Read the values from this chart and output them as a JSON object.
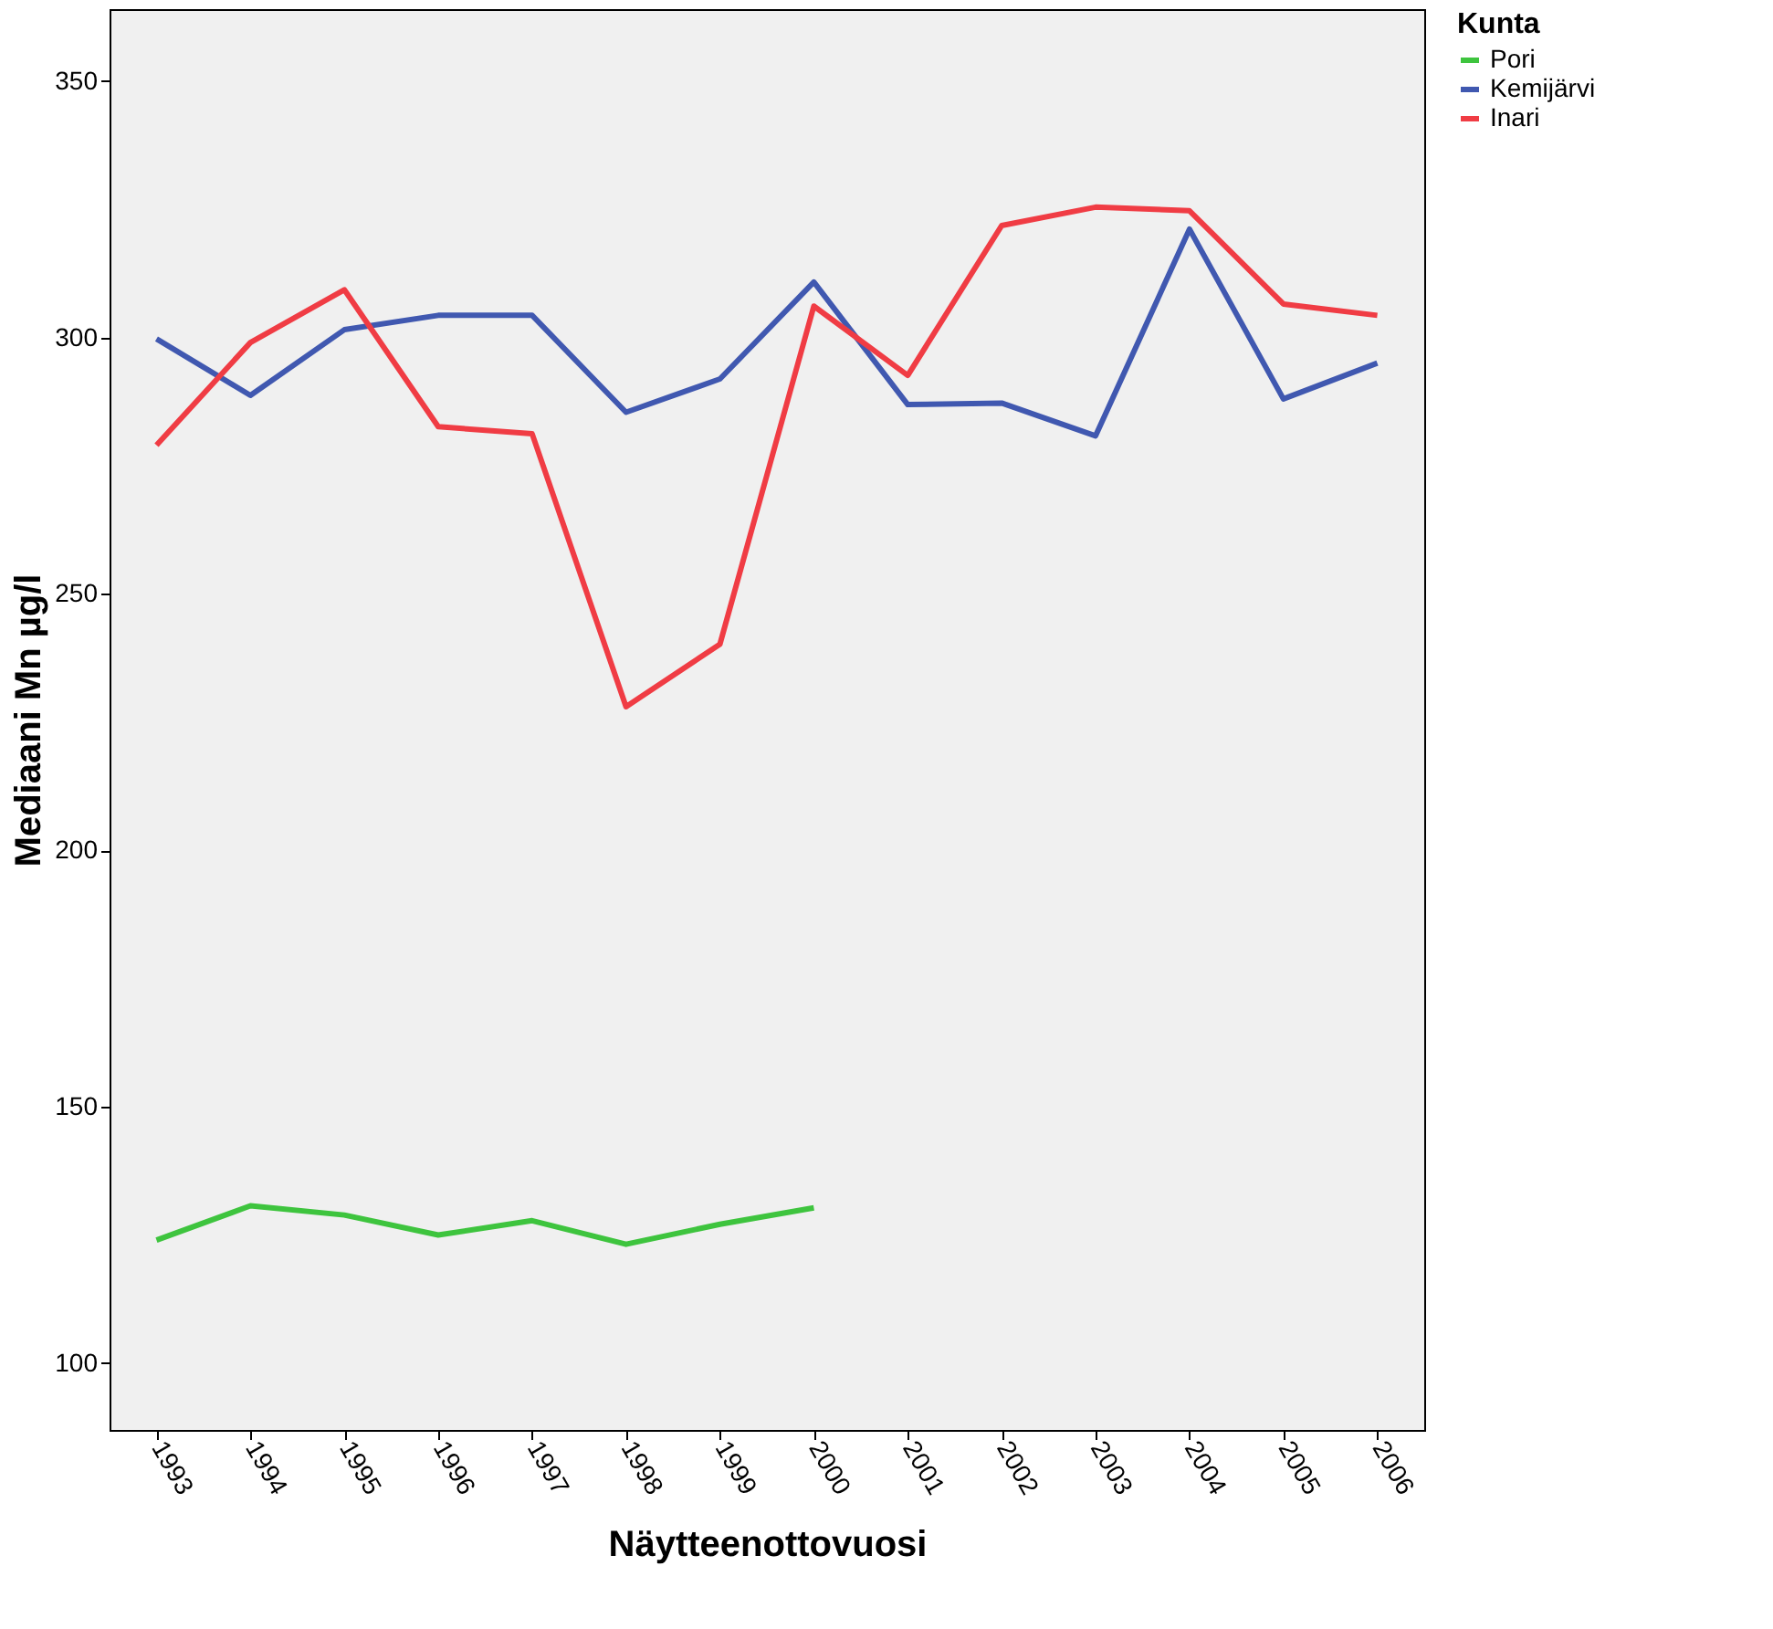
{
  "chart_data": {
    "type": "line",
    "xlabel": "Näytteenottovuosi",
    "ylabel": "Mediaani Mn µg/l",
    "legend_title": "Kunta",
    "legend": "top right",
    "grid": false,
    "line_style": "solid",
    "marker": "none",
    "categories": [
      "1993",
      "1994",
      "1995",
      "1996",
      "1997",
      "1998",
      "1999",
      "2000",
      "2001",
      "2002",
      "2003",
      "2004",
      "2005",
      "2006"
    ],
    "ylim": [
      87,
      364
    ],
    "yticks": [
      100,
      150,
      200,
      250,
      300,
      350
    ],
    "series": [
      {
        "name": "Pori",
        "color": "#3ec43e",
        "values": [
          124,
          130.7,
          128.9,
          125,
          127.8,
          123.2,
          127.1,
          130.3,
          null,
          null,
          null,
          null,
          null,
          null
        ]
      },
      {
        "name": "Kemijärvi",
        "color": "#4058b0",
        "values": [
          299.7,
          288.7,
          301.5,
          304.3,
          304.3,
          285.4,
          291.9,
          310.8,
          286.9,
          287.2,
          280.8,
          321.1,
          288,
          295
        ]
      },
      {
        "name": "Inari",
        "color": "#f03c44",
        "values": [
          279,
          299,
          309.3,
          282.6,
          281.2,
          228,
          240.2,
          306.1,
          292.6,
          321.8,
          325.4,
          324.7,
          306.5,
          304.3
        ]
      }
    ]
  }
}
